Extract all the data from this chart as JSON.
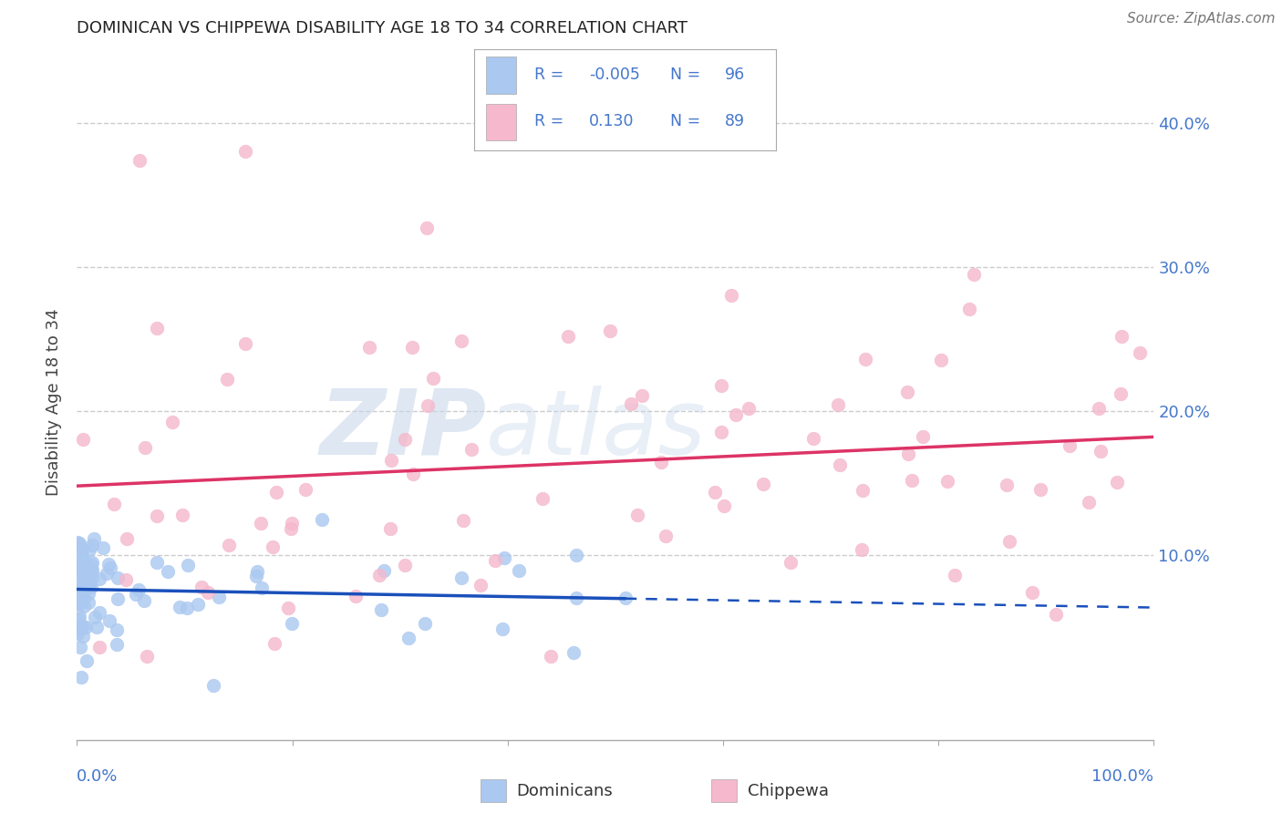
{
  "title": "DOMINICAN VS CHIPPEWA DISABILITY AGE 18 TO 34 CORRELATION CHART",
  "source": "Source: ZipAtlas.com",
  "ylabel": "Disability Age 18 to 34",
  "ytick_positions": [
    0.0,
    0.1,
    0.2,
    0.3,
    0.4
  ],
  "ytick_labels": [
    "",
    "10.0%",
    "20.0%",
    "30.0%",
    "40.0%"
  ],
  "xlim": [
    0.0,
    1.0
  ],
  "ylim": [
    -0.028,
    0.44
  ],
  "legend_blue_r": "-0.005",
  "legend_blue_n": "96",
  "legend_pink_r": "0.130",
  "legend_pink_n": "89",
  "blue_scatter_color": "#aac8f0",
  "pink_scatter_color": "#f5b8cc",
  "blue_line_color": "#1a50bb",
  "pink_line_color": "#dd3366",
  "grid_color": "#cccccc",
  "axis_label_color": "#4477cc",
  "legend_text_color": "#4477cc",
  "watermark_color": "#c8d8ea",
  "title_color": "#222222",
  "source_color": "#777777"
}
